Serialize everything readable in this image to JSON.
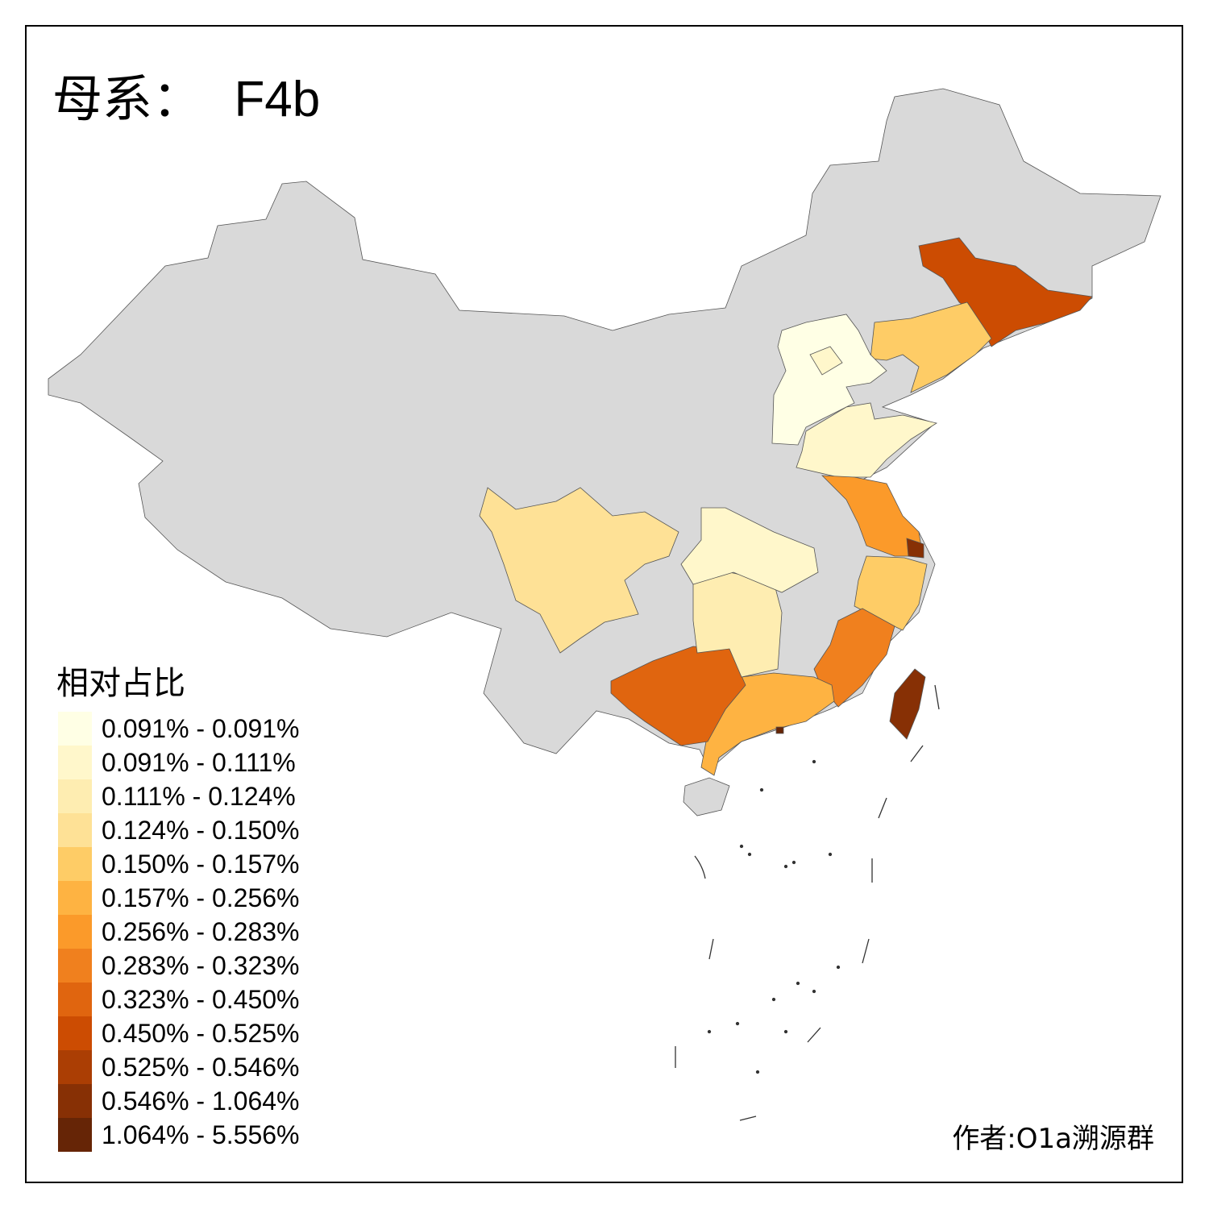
{
  "title": {
    "prefix": "母系：",
    "haplogroup": "F4b"
  },
  "legend": {
    "title": "相对占比",
    "classes": [
      {
        "label": "0.091% - 0.091%",
        "color": "#FFFFE5"
      },
      {
        "label": "0.091% - 0.111%",
        "color": "#FFF7CB"
      },
      {
        "label": "0.111% - 0.124%",
        "color": "#FEEDB1"
      },
      {
        "label": "0.124% - 0.150%",
        "color": "#FEE196"
      },
      {
        "label": "0.150% - 0.157%",
        "color": "#FECC66"
      },
      {
        "label": "0.157% - 0.256%",
        "color": "#FEB342"
      },
      {
        "label": "0.256% - 0.283%",
        "color": "#FB9A2A"
      },
      {
        "label": "0.283% - 0.323%",
        "color": "#F0801E"
      },
      {
        "label": "0.323% - 0.450%",
        "color": "#E0650F"
      },
      {
        "label": "0.450% - 0.525%",
        "color": "#CC4C02"
      },
      {
        "label": "0.525% - 0.546%",
        "color": "#AB3E04"
      },
      {
        "label": "0.546% - 1.064%",
        "color": "#873005"
      },
      {
        "label": "1.064% - 5.556%",
        "color": "#662506"
      }
    ]
  },
  "no_data_color": "#D9D9D9",
  "author": "作者:O1a溯源群"
}
